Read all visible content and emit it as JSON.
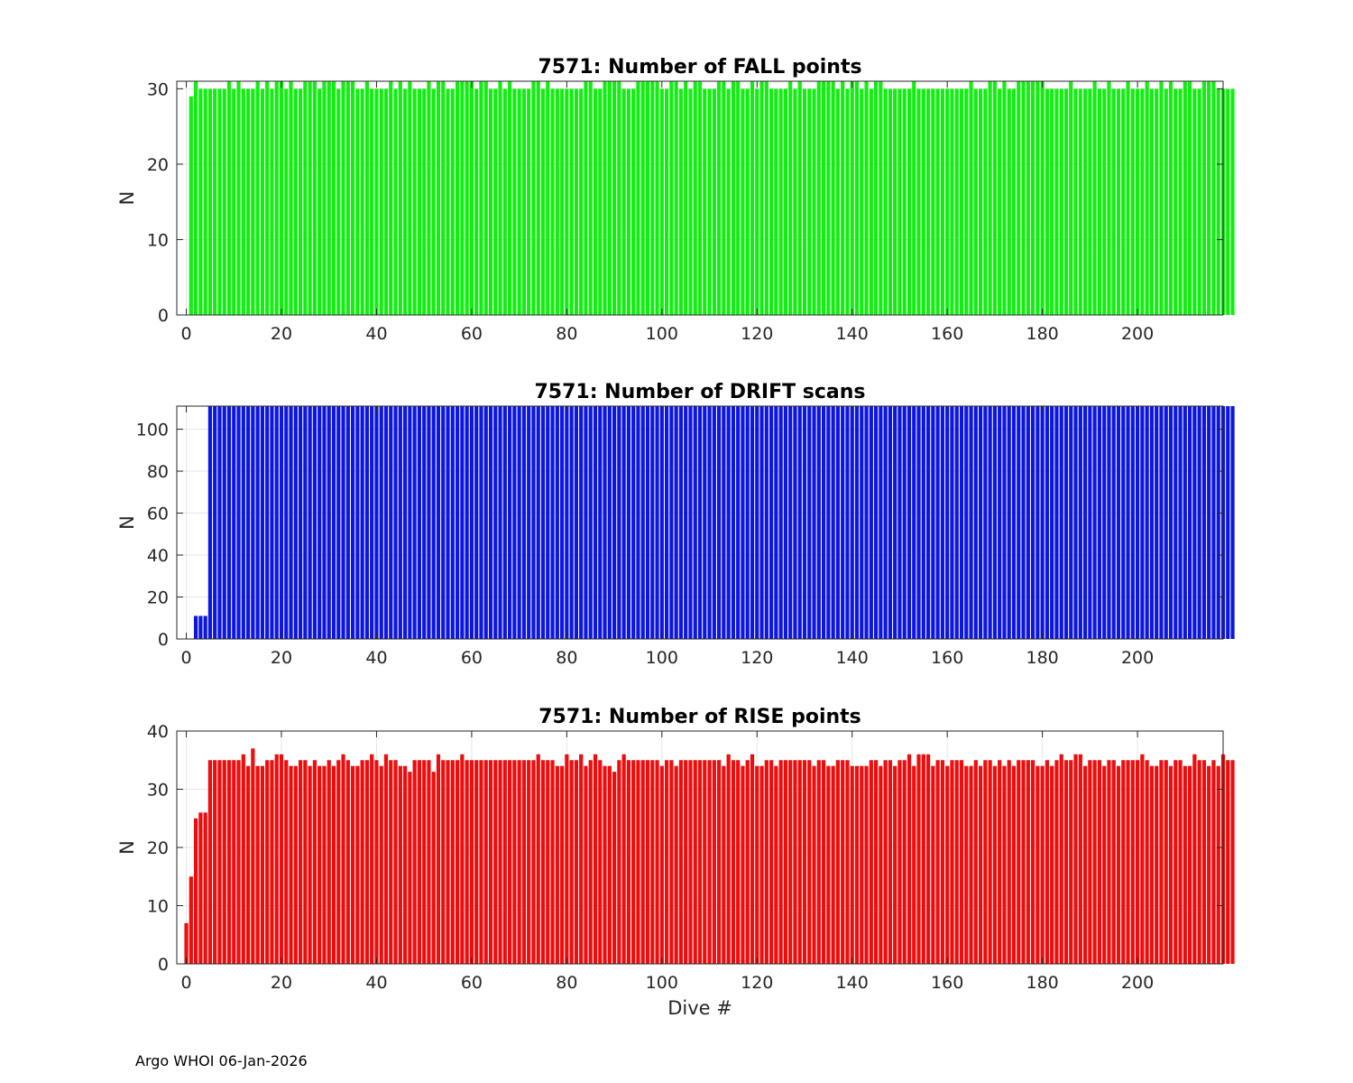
{
  "footer": "Argo WHOI 06-Jan-2026",
  "chart_data": [
    {
      "type": "bar",
      "title": "7571: Number of FALL points",
      "xlabel": "",
      "ylabel": "N",
      "color": "#12ee12",
      "xlim": [
        -2,
        218
      ],
      "ylim": [
        0,
        31
      ],
      "xticks": [
        0,
        20,
        40,
        60,
        80,
        100,
        120,
        140,
        160,
        180,
        200
      ],
      "yticks": [
        0,
        10,
        20,
        30
      ],
      "x_start": 1,
      "values": [
        29,
        31,
        30,
        30,
        30,
        30,
        30,
        30,
        31,
        30,
        31,
        30,
        30,
        30,
        31,
        30,
        31,
        30,
        31,
        31,
        30,
        31,
        30,
        30,
        31,
        31,
        31,
        30,
        31,
        31,
        31,
        30,
        31,
        31,
        31,
        30,
        30,
        31,
        30,
        30,
        30,
        30,
        31,
        30,
        31,
        30,
        31,
        30,
        30,
        30,
        31,
        30,
        31,
        31,
        30,
        30,
        31,
        31,
        31,
        31,
        30,
        31,
        31,
        30,
        30,
        31,
        30,
        31,
        30,
        30,
        30,
        30,
        31,
        31,
        30,
        31,
        30,
        30,
        30,
        30,
        30,
        30,
        30,
        31,
        31,
        30,
        30,
        31,
        31,
        31,
        31,
        30,
        30,
        30,
        31,
        31,
        31,
        31,
        31,
        30,
        30,
        31,
        31,
        30,
        31,
        30,
        31,
        31,
        30,
        30,
        30,
        31,
        31,
        30,
        31,
        31,
        30,
        30,
        31,
        30,
        31,
        31,
        30,
        30,
        30,
        30,
        31,
        30,
        31,
        30,
        30,
        30,
        31,
        31,
        31,
        31,
        30,
        31,
        30,
        31,
        31,
        30,
        31,
        30,
        31,
        31,
        30,
        30,
        30,
        30,
        30,
        30,
        31,
        30,
        30,
        30,
        30,
        30,
        30,
        30,
        30,
        30,
        30,
        30,
        31,
        30,
        30,
        30,
        31,
        31,
        30,
        31,
        30,
        30,
        31,
        31,
        31,
        31,
        31,
        31,
        30,
        30,
        30,
        30,
        30,
        31,
        30,
        30,
        30,
        30,
        31,
        30,
        30,
        31,
        30,
        30,
        30,
        31,
        30,
        30,
        30,
        31,
        30,
        30,
        31,
        30,
        31,
        30,
        30,
        31,
        31,
        30,
        30,
        31,
        31,
        31,
        30,
        30,
        30,
        30
      ]
    },
    {
      "type": "bar",
      "title": "7571: Number of DRIFT scans",
      "xlabel": "",
      "ylabel": "N",
      "color": "#0d16de",
      "xlim": [
        -2,
        218
      ],
      "ylim": [
        0,
        111
      ],
      "xticks": [
        0,
        20,
        40,
        60,
        80,
        100,
        120,
        140,
        160,
        180,
        200
      ],
      "yticks": [
        0,
        20,
        40,
        60,
        80,
        100
      ],
      "x_start": 1,
      "values": [
        0,
        11,
        11,
        11,
        111,
        111,
        111,
        111,
        111,
        111,
        111,
        111,
        111,
        111,
        111,
        111,
        111,
        111,
        111,
        111,
        111,
        111,
        111,
        111,
        111,
        111,
        111,
        111,
        111,
        111,
        111,
        111,
        111,
        111,
        111,
        111,
        111,
        111,
        111,
        111,
        111,
        111,
        111,
        111,
        111,
        111,
        111,
        111,
        111,
        111,
        111,
        111,
        111,
        111,
        111,
        111,
        111,
        111,
        111,
        111,
        111,
        111,
        111,
        111,
        111,
        111,
        111,
        111,
        111,
        111,
        111,
        111,
        111,
        111,
        111,
        111,
        111,
        111,
        111,
        111,
        111,
        111,
        111,
        111,
        111,
        111,
        111,
        111,
        111,
        111,
        111,
        111,
        111,
        111,
        111,
        111,
        111,
        111,
        111,
        111,
        111,
        111,
        111,
        111,
        111,
        111,
        111,
        111,
        111,
        111,
        111,
        111,
        111,
        111,
        111,
        111,
        111,
        111,
        111,
        111,
        111,
        111,
        111,
        111,
        111,
        111,
        111,
        111,
        111,
        111,
        111,
        111,
        111,
        111,
        111,
        111,
        111,
        111,
        111,
        111,
        111,
        111,
        111,
        111,
        111,
        111,
        111,
        111,
        111,
        111,
        111,
        111,
        111,
        111,
        111,
        111,
        111,
        111,
        111,
        111,
        111,
        111,
        111,
        111,
        111,
        111,
        111,
        111,
        111,
        111,
        111,
        111,
        111,
        111,
        111,
        111,
        111,
        111,
        111,
        111,
        111,
        111,
        111,
        111,
        111,
        111,
        111,
        111,
        111,
        111,
        111,
        111,
        111,
        111,
        111,
        111,
        111,
        111,
        111,
        111,
        111,
        111,
        111,
        111,
        111,
        111,
        111,
        111,
        111,
        111,
        111,
        111,
        111,
        111,
        111,
        111,
        111,
        111,
        111,
        111
      ]
    },
    {
      "type": "bar",
      "title": "7571: Number of RISE points",
      "xlabel": "Dive #",
      "ylabel": "N",
      "color": "#ee0c0c",
      "xlim": [
        -2,
        218
      ],
      "ylim": [
        0,
        40
      ],
      "xticks": [
        0,
        20,
        40,
        60,
        80,
        100,
        120,
        140,
        160,
        180,
        200
      ],
      "yticks": [
        0,
        10,
        20,
        30,
        40
      ],
      "x_start": 0,
      "values": [
        7,
        15,
        25,
        26,
        26,
        35,
        35,
        35,
        35,
        35,
        35,
        35,
        36,
        34,
        37,
        34,
        34,
        35,
        35,
        36,
        36,
        35,
        34,
        34,
        35,
        35,
        34,
        35,
        34,
        34,
        35,
        34,
        35,
        36,
        35,
        34,
        34,
        35,
        35,
        36,
        35,
        34,
        36,
        35,
        35,
        34,
        34,
        33,
        35,
        35,
        35,
        35,
        33,
        36,
        35,
        35,
        35,
        35,
        36,
        35,
        35,
        35,
        35,
        35,
        35,
        35,
        35,
        35,
        35,
        35,
        35,
        35,
        35,
        35,
        36,
        35,
        35,
        35,
        34,
        34,
        36,
        35,
        35,
        36,
        34,
        35,
        36,
        35,
        34,
        34,
        33,
        35,
        36,
        35,
        35,
        35,
        35,
        35,
        35,
        35,
        34,
        35,
        35,
        34,
        35,
        35,
        35,
        35,
        35,
        35,
        35,
        35,
        35,
        34,
        36,
        35,
        35,
        34,
        35,
        36,
        34,
        34,
        35,
        35,
        34,
        35,
        35,
        35,
        35,
        35,
        35,
        35,
        34,
        35,
        35,
        34,
        34,
        35,
        35,
        35,
        34,
        34,
        34,
        34,
        35,
        35,
        34,
        35,
        35,
        34,
        35,
        35,
        36,
        34,
        36,
        36,
        36,
        34,
        35,
        35,
        34,
        35,
        35,
        35,
        34,
        34,
        35,
        34,
        35,
        35,
        34,
        35,
        34,
        35,
        34,
        35,
        35,
        35,
        35,
        34,
        34,
        35,
        34,
        35,
        36,
        35,
        35,
        36,
        36,
        34,
        35,
        35,
        35,
        34,
        35,
        35,
        34,
        35,
        35,
        35,
        35,
        36,
        35,
        34,
        34,
        35,
        35,
        34,
        35,
        35,
        34,
        34,
        36,
        35,
        35,
        34,
        35,
        34,
        36,
        35,
        35
      ]
    }
  ]
}
